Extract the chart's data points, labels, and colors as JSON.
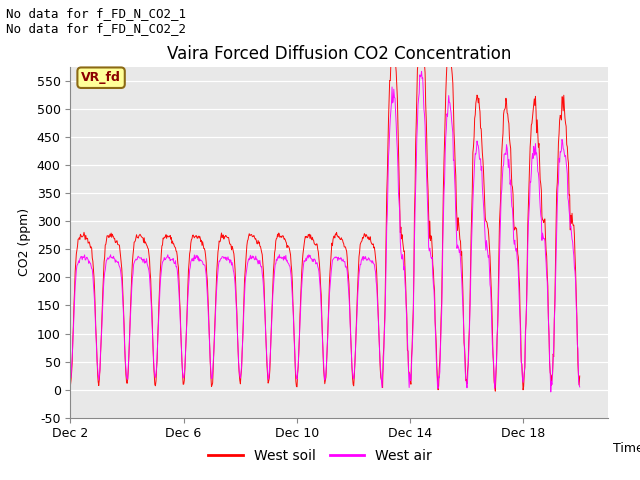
{
  "title": "Vaira Forced Diffusion CO2 Concentration",
  "ylabel": "CO2 (ppm)",
  "xlabel": "Time",
  "ylim": [
    -50,
    575
  ],
  "yticks": [
    -50,
    0,
    50,
    100,
    150,
    200,
    250,
    300,
    350,
    400,
    450,
    500,
    550
  ],
  "xtick_labels": [
    "Dec 2",
    "Dec 6",
    "Dec 10",
    "Dec 14",
    "Dec 18"
  ],
  "xtick_positions": [
    1,
    5,
    9,
    13,
    17
  ],
  "west_soil_color": "#FF0000",
  "west_air_color": "#FF00FF",
  "plot_bg_color": "#E8E8E8",
  "legend_items": [
    "West soil",
    "West air"
  ],
  "annotation_text1": "No data for f_FD_N_CO2_1",
  "annotation_text2": "No data for f_FD_N_CO2_2",
  "vrfd_label": "VR_fd",
  "vrfd_bg": "#FFFF99",
  "vrfd_border": "#8B6914",
  "vrfd_text_color": "#8B0000",
  "title_fontsize": 12,
  "label_fontsize": 9,
  "tick_fontsize": 9,
  "legend_fontsize": 10,
  "annotation_fontsize": 9,
  "xlim": [
    1,
    20
  ]
}
